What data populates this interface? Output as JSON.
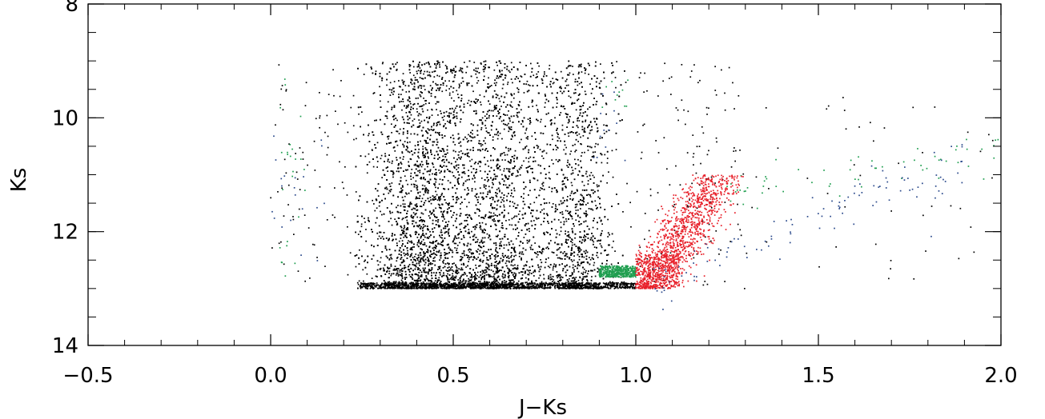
{
  "chart_data": {
    "type": "scatter",
    "title": "",
    "xlabel": "J−Ks",
    "ylabel": "Ks",
    "xlim": [
      -0.5,
      2.0
    ],
    "ylim": [
      14,
      8
    ],
    "y_inverted": true,
    "xticks": [
      -0.5,
      0.0,
      0.5,
      1.0,
      1.5,
      2.0
    ],
    "xtick_labels": [
      "−0.5",
      "0.0",
      "0.5",
      "1.0",
      "1.5",
      "2.0"
    ],
    "yticks": [
      8,
      10,
      12,
      14
    ],
    "ytick_labels": [
      "8",
      "10",
      "12",
      "14"
    ],
    "grid": false,
    "legend": "none",
    "series": [
      {
        "color": "#000000",
        "description_regions": [
          {
            "x": [
              0.23,
              0.97
            ],
            "y": [
              9.0,
              13.0
            ],
            "density": "very high"
          },
          {
            "x": [
              0.0,
              1.3
            ],
            "y": [
              9.0,
              13.0
            ],
            "density": "sparse"
          }
        ],
        "samples": [
          [
            0.4,
            12.5
          ],
          [
            0.65,
            11.0
          ],
          [
            0.85,
            12.2
          ],
          [
            0.3,
            9.2
          ],
          [
            0.6,
            9.3
          ],
          [
            1.1,
            12.0
          ],
          [
            1.25,
            9.8
          ],
          [
            1.2,
            11.1
          ]
        ]
      },
      {
        "color": "#1f9e4f",
        "description_regions": [
          {
            "x": [
              0.9,
              1.0
            ],
            "y": [
              12.6,
              12.8
            ],
            "density": "solid block"
          },
          {
            "x": [
              1.2,
              2.0
            ],
            "y": [
              10.3,
              11.6
            ],
            "density": "sparse"
          },
          {
            "x": [
              0.0,
              0.1
            ],
            "y": [
              9.3,
              12.8
            ],
            "density": "sparse"
          }
        ],
        "samples": [
          [
            0.95,
            12.7
          ],
          [
            1.5,
            10.7
          ],
          [
            1.8,
            10.4
          ],
          [
            1.97,
            11.2
          ],
          [
            0.05,
            12.4
          ],
          [
            0.06,
            9.5
          ]
        ]
      },
      {
        "color": "#e8202a",
        "description_regions": [
          {
            "x": [
              1.0,
              1.29
            ],
            "y": [
              11.0,
              13.0
            ],
            "density": "high, diagonal"
          }
        ],
        "samples": [
          [
            1.05,
            12.8
          ],
          [
            1.1,
            12.3
          ],
          [
            1.2,
            11.6
          ],
          [
            1.27,
            11.1
          ]
        ]
      },
      {
        "color": "#2b4a8c",
        "description_regions": [
          {
            "x": [
              1.0,
              1.9
            ],
            "y": [
              10.6,
              13.0
            ],
            "density": "sparse"
          },
          {
            "x": [
              0.0,
              0.15
            ],
            "y": [
              10.3,
              13.0
            ],
            "density": "sparse"
          }
        ],
        "samples": [
          [
            1.15,
            12.6
          ],
          [
            1.45,
            11.2
          ],
          [
            1.7,
            10.9
          ],
          [
            0.02,
            12.9
          ],
          [
            0.14,
            10.5
          ]
        ]
      }
    ]
  }
}
